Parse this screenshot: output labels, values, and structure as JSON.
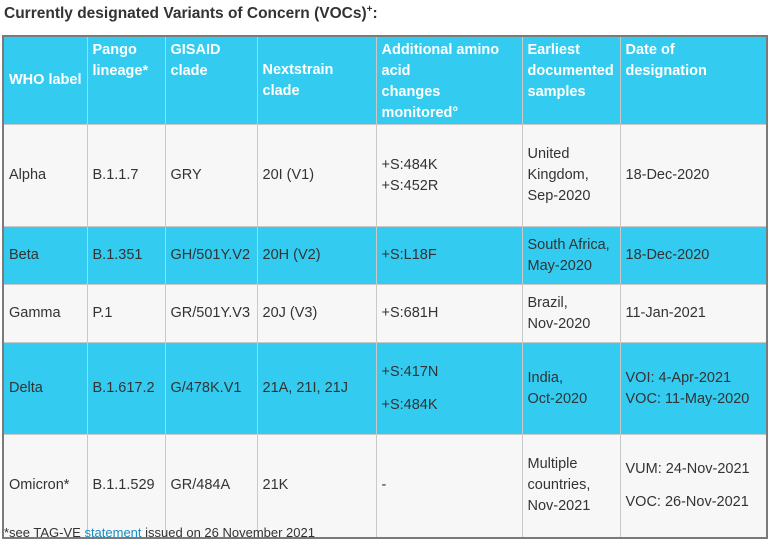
{
  "title": "Currently designated Variants of Concern (VOCs)",
  "title_superscript": "+",
  "title_colon": ":",
  "colors": {
    "header_bg": "#33ccf0",
    "row_alt_bg": "#33ccf0",
    "row_bg": "#f7f7f7",
    "link": "#1a8cc4"
  },
  "headers": {
    "who": "WHO label",
    "pango_1": "Pango",
    "pango_2": "lineage*",
    "gisaid_1": "GISAID",
    "gisaid_2": "clade",
    "nextstrain": "Nextstrain clade",
    "amino_1": "Additional amino",
    "amino_2": "acid",
    "amino_3": "changes monitored°",
    "earliest_1": "Earliest",
    "earliest_2": "documented",
    "earliest_3": "samples",
    "date_1": "Date of",
    "date_2": "designation"
  },
  "rows": [
    {
      "who": "Alpha",
      "pango": "B.1.1.7",
      "gisaid": "GRY",
      "nextstrain": "20I (V1)",
      "amino_1": "+S:484K",
      "amino_2": "+S:452R",
      "earliest_1": "United",
      "earliest_2": "Kingdom,",
      "earliest_3": "Sep-2020",
      "date_1": "18-Dec-2020"
    },
    {
      "who": "Beta",
      "pango": "B.1.351",
      "gisaid": "GH/501Y.V2",
      "nextstrain": "20H (V2)",
      "amino_1": "+S:L18F",
      "earliest_1": "South Africa,",
      "earliest_2": "May-2020",
      "date_1": "18-Dec-2020"
    },
    {
      "who": "Gamma",
      "pango": "P.1",
      "gisaid": "GR/501Y.V3",
      "nextstrain": "20J (V3)",
      "amino_1": "+S:681H",
      "earliest_1": "Brazil,",
      "earliest_2": "Nov-2020",
      "date_1": "11-Jan-2021"
    },
    {
      "who": "Delta",
      "pango": "B.1.617.2",
      "gisaid": "G/478K.V1",
      "nextstrain": "21A, 21I, 21J",
      "amino_1": "+S:417N",
      "amino_2": "+S:484K",
      "earliest_1": "India,",
      "earliest_2": "Oct-2020",
      "date_1": "VOI: 4-Apr-2021",
      "date_2": "VOC: 11-May-2020"
    },
    {
      "who": "Omicron*",
      "pango": "B.1.1.529",
      "gisaid": "GR/484A",
      "nextstrain": "21K",
      "amino_1": "-",
      "earliest_1": "Multiple",
      "earliest_2": "countries,",
      "earliest_3": "Nov-2021",
      "date_1": "VUM: 24-Nov-2021",
      "date_2": "VOC: 26-Nov-2021"
    }
  ],
  "footnote": {
    "prefix": "*see TAG-VE ",
    "link": "statement",
    "suffix": " issued on 26 November 2021"
  }
}
